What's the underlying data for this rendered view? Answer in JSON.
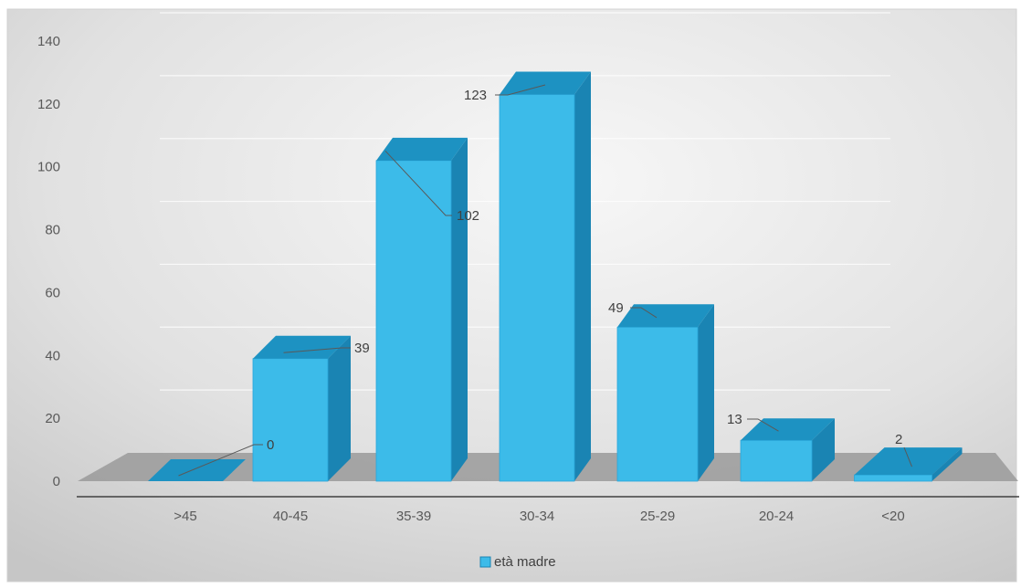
{
  "chart_data": {
    "type": "bar",
    "categories": [
      ">45",
      "40-45",
      "35-39",
      "30-34",
      "25-29",
      "20-24",
      "<20"
    ],
    "series": [
      {
        "name": "età madre",
        "values": [
          0,
          39,
          102,
          123,
          49,
          13,
          2
        ]
      }
    ],
    "data_labels": [
      "0",
      "39",
      "102",
      "123",
      "49",
      "13",
      "2"
    ],
    "yticks": [
      "0",
      "20",
      "40",
      "60",
      "80",
      "100",
      "120",
      "140"
    ],
    "ylim": [
      0,
      140
    ],
    "grid": true,
    "legend_position": "bottom",
    "colors": {
      "bar_front": "#3cbbe9",
      "bar_top": "#1d92c2",
      "bar_side": "#1a84b3",
      "floor": "#9a9a9a",
      "background_from": "#ececec",
      "background_to": "#c9c9c9",
      "gridline": "#ffffff",
      "axis": "#404040"
    }
  }
}
